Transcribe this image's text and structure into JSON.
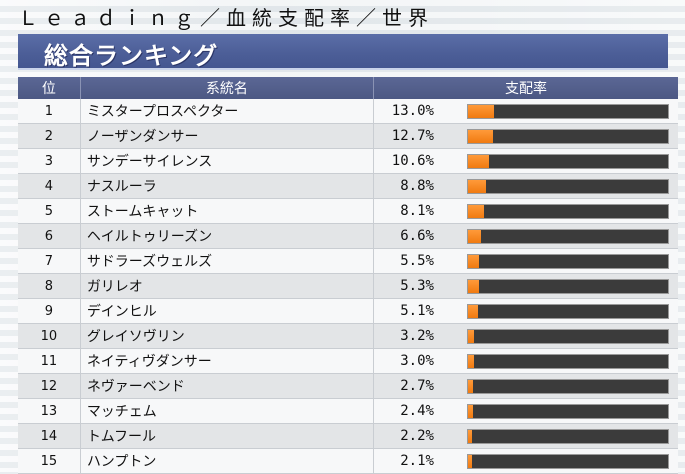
{
  "page": {
    "top_title": "Ｌｅａｄｉｎｇ／血統支配率／世界",
    "section_title": "総合ランキング"
  },
  "table": {
    "headers": {
      "rank": "位",
      "name": "系統名",
      "share": "支配率"
    },
    "rows": [
      {
        "rank": "1",
        "name": "ミスタープロスペクター",
        "share": "13.0%",
        "value": 13.0
      },
      {
        "rank": "2",
        "name": "ノーザンダンサー",
        "share": "12.7%",
        "value": 12.7
      },
      {
        "rank": "3",
        "name": "サンデーサイレンス",
        "share": "10.6%",
        "value": 10.6
      },
      {
        "rank": "4",
        "name": "ナスルーラ",
        "share": "8.8%",
        "value": 8.8
      },
      {
        "rank": "5",
        "name": "ストームキャット",
        "share": "8.1%",
        "value": 8.1
      },
      {
        "rank": "6",
        "name": "ヘイルトゥリーズン",
        "share": "6.6%",
        "value": 6.6
      },
      {
        "rank": "7",
        "name": "サドラーズウェルズ",
        "share": "5.5%",
        "value": 5.5
      },
      {
        "rank": "8",
        "name": "ガリレオ",
        "share": "5.3%",
        "value": 5.3
      },
      {
        "rank": "9",
        "name": "デインヒル",
        "share": "5.1%",
        "value": 5.1
      },
      {
        "rank": "10",
        "name": "グレイソヴリン",
        "share": "3.2%",
        "value": 3.2
      },
      {
        "rank": "11",
        "name": "ネイティヴダンサー",
        "share": "3.0%",
        "value": 3.0
      },
      {
        "rank": "12",
        "name": "ネヴァーベンド",
        "share": "2.7%",
        "value": 2.7
      },
      {
        "rank": "13",
        "name": "マッチェム",
        "share": "2.4%",
        "value": 2.4
      },
      {
        "rank": "14",
        "name": "トムフール",
        "share": "2.2%",
        "value": 2.2
      },
      {
        "rank": "15",
        "name": "ハンプトン",
        "share": "2.1%",
        "value": 2.1
      }
    ]
  },
  "colors": {
    "bar_fill": "#f07a10",
    "bar_track": "#3b3b3b",
    "header_band": "#4d5f98"
  }
}
